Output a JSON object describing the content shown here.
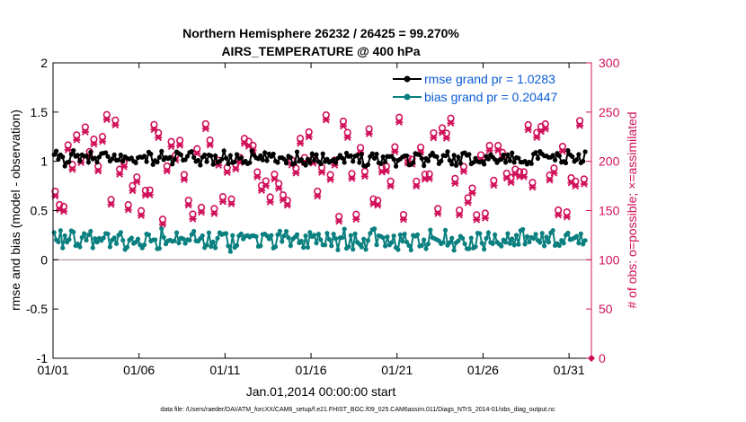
{
  "chart_data": {
    "type": "line",
    "title": [
      "Northern Hemisphere 26232 / 26425 = 99.270%",
      "AIRS_TEMPERATURE @ 400 hPa"
    ],
    "xlabel": "Jan.01,2014 00:00:00 start",
    "ylabel_left": "rmse and bias (model - observation)",
    "ylabel_right": "# of obs: o=possible; ×=assimilated",
    "footer": "data file: /Users/raeder/DAI/ATM_forcXX/CAM6_setup/f.e21.FHIST_BGC.f09_025.CAM6assim.011/Diags_NTrS_2014-01/obs_diag_output.nc",
    "xlim": [
      0,
      31.3
    ],
    "xticks": [
      {
        "v": 0,
        "label": "01/01"
      },
      {
        "v": 5,
        "label": "01/06"
      },
      {
        "v": 10,
        "label": "01/11"
      },
      {
        "v": 15,
        "label": "01/16"
      },
      {
        "v": 20,
        "label": "01/21"
      },
      {
        "v": 25,
        "label": "01/26"
      },
      {
        "v": 30,
        "label": "01/31"
      }
    ],
    "ylim_left": [
      -1,
      2
    ],
    "yticks_left": [
      "-1",
      "-0.5",
      "0",
      "0.5",
      "1",
      "1.5",
      "2"
    ],
    "ylim_right": [
      0,
      300
    ],
    "yticks_right": [
      "0",
      "50",
      "100",
      "150",
      "200",
      "250",
      "300"
    ],
    "grid": false,
    "legend_position": "top-right",
    "series": [
      {
        "name": "rmse grand pr = 1.0283",
        "axis": "left",
        "color": "#000000",
        "marker": "dot",
        "points": 248,
        "mean": 1.03,
        "amplitude": 0.06
      },
      {
        "name": "bias grand pr = 0.20447",
        "axis": "left",
        "color": "#0a7f7f",
        "marker": "dot",
        "points": 248,
        "mean": 0.2,
        "amplitude": 0.09
      },
      {
        "name": "",
        "axis": "right",
        "color": "#d0105a",
        "marker": "o",
        "points": 124,
        "mean": 195,
        "amplitude": 35
      },
      {
        "name": "",
        "axis": "right",
        "color": "#d0105a",
        "marker": "x",
        "points": 124,
        "mean": 193,
        "amplitude": 35
      }
    ],
    "zero_line_color": "#c8a6b6",
    "right_axis_color": "#d0105a"
  }
}
